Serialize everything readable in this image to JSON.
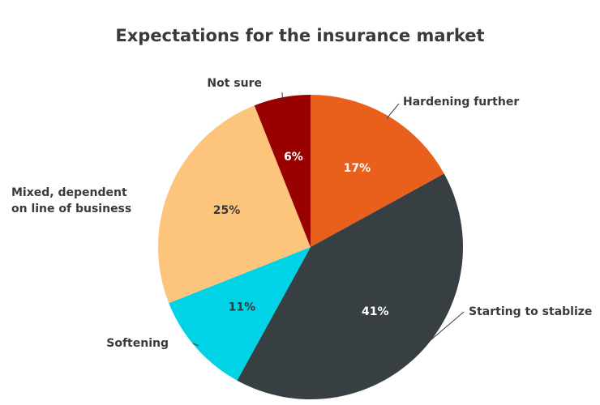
{
  "chart_data": {
    "type": "pie",
    "title": "Expectations for the insurance market",
    "categories": [
      "Hardening further",
      "Starting to stablize",
      "Softening",
      "Mixed, dependent on line of business",
      "Not sure"
    ],
    "values": [
      17,
      41,
      11,
      25,
      6
    ],
    "value_labels": [
      "17%",
      "41%",
      "11%",
      "25%",
      "6%"
    ],
    "colors": [
      "#e8601c",
      "#373f43",
      "#00d3e6",
      "#fdc47b",
      "#990000"
    ]
  }
}
